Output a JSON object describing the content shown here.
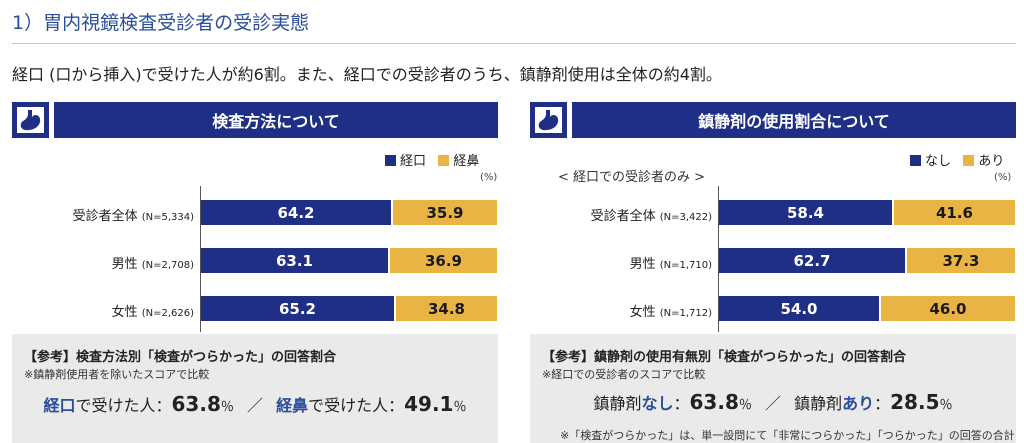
{
  "header": {
    "title": "1）胃内視鏡検査受診者の受診実態",
    "intro": "経口 (口から挿入)で受けた人が約6割。また、経口での受診者のうち、鎮静剤使用は全体の約4割。"
  },
  "colors": {
    "navy": "#1f2f86",
    "gold": "#e9b443",
    "accent_text": "#2a4f9a"
  },
  "icons": {
    "panel_icon": "stomach-icon"
  },
  "chart_data": [
    {
      "type": "bar",
      "orientation": "horizontal",
      "stacked": true,
      "title": "検査方法について",
      "unit": "(%)",
      "legend_position": "top-right",
      "categories": [
        "受診者全体",
        "男性",
        "女性"
      ],
      "sample_sizes": [
        "(N=5,334)",
        "(N=2,708)",
        "(N=2,626)"
      ],
      "series": [
        {
          "name": "経口",
          "values": [
            64.2,
            63.1,
            65.2
          ]
        },
        {
          "name": "経鼻",
          "values": [
            35.9,
            36.9,
            34.8
          ]
        }
      ],
      "xlim": [
        0,
        100
      ]
    },
    {
      "type": "bar",
      "orientation": "horizontal",
      "stacked": true,
      "title": "鎮静剤の使用割合について",
      "subtitle": "< 経口での受診者のみ >",
      "unit": "(%)",
      "legend_position": "top-right",
      "categories": [
        "受診者全体",
        "男性",
        "女性"
      ],
      "sample_sizes": [
        "(N=3,422)",
        "(N=1,710)",
        "(N=1,712)"
      ],
      "series": [
        {
          "name": "なし",
          "values": [
            58.4,
            62.7,
            54.0
          ]
        },
        {
          "name": "あり",
          "values": [
            41.6,
            37.3,
            46.0
          ]
        }
      ],
      "xlim": [
        0,
        100
      ]
    }
  ],
  "reference": {
    "left": {
      "title": "【参考】検査方法別「検査がつらかった」の回答割合",
      "note": "※鎮静剤使用者を除いたスコアで比較",
      "a_key": "経口",
      "a_text": "で受けた人：",
      "a_value": "63.8",
      "a_unit": "％",
      "sep": "／",
      "b_key": "経鼻",
      "b_text": "で受けた人：",
      "b_value": "49.1",
      "b_unit": "％"
    },
    "right": {
      "title": "【参考】鎮静剤の使用有無別「検査がつらかった」の回答割合",
      "note": "※経口での受診者のスコアで比較",
      "a_pre": "鎮静剤",
      "a_key": "なし",
      "a_text": "：",
      "a_value": "63.8",
      "a_unit": "％",
      "sep": "／",
      "b_pre": "鎮静剤",
      "b_key": "あり",
      "b_text": "：",
      "b_value": "28.5",
      "b_unit": "％"
    }
  },
  "footnote": "※「検査がつらかった」は、単一設問にて「非常につらかった」「つらかった」の回答の合計"
}
